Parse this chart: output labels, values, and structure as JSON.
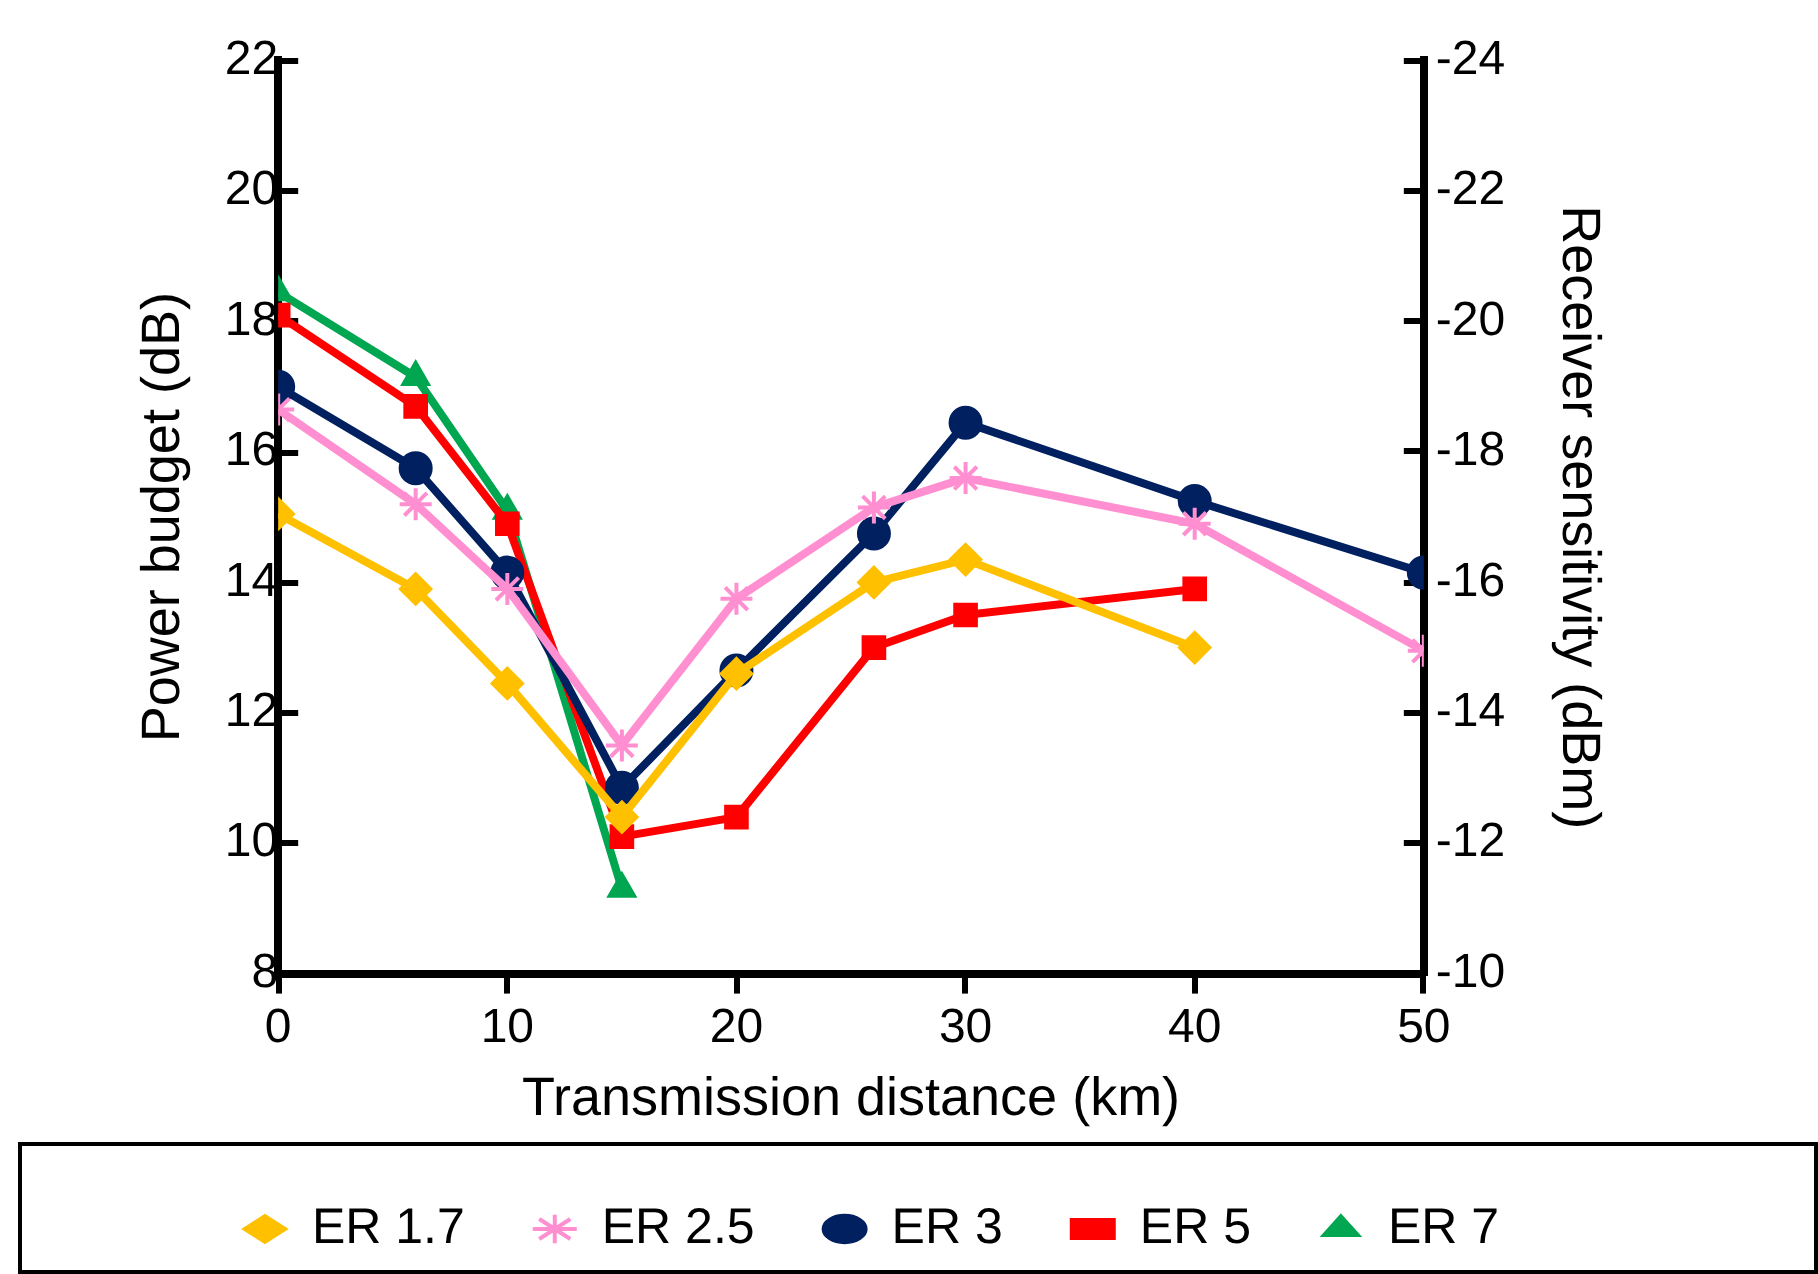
{
  "chart_data": {
    "type": "line",
    "xlabel": "Transmission distance (km)",
    "ylabel": "Power budget (dB)",
    "y2label": "Receiver sensitivity (dBm)",
    "xlim": [
      0,
      50
    ],
    "xticks": [
      0,
      10,
      20,
      30,
      40,
      50
    ],
    "ylim": [
      8,
      22
    ],
    "yticks": [
      8,
      10,
      12,
      14,
      16,
      18,
      20,
      22
    ],
    "y2lim": [
      -10,
      -24
    ],
    "y2ticks": [
      -10,
      -12,
      -14,
      -16,
      -18,
      -20,
      -22,
      -24
    ],
    "grid": false,
    "legend": "bottom",
    "series": [
      {
        "name": "ER 1.7",
        "color": "#ffc000",
        "marker": "diamond",
        "x": [
          0,
          6,
          10,
          15,
          20,
          26,
          30,
          40
        ],
        "values": [
          15.05,
          13.9,
          12.45,
          10.4,
          12.6,
          14.0,
          14.35,
          13.0
        ]
      },
      {
        "name": "ER 2.5",
        "color": "#ff8fd0",
        "marker": "cross",
        "x": [
          0,
          6,
          10,
          15,
          20,
          26,
          30,
          40,
          50
        ],
        "values": [
          16.65,
          15.2,
          13.9,
          11.5,
          13.75,
          15.15,
          15.6,
          14.9,
          12.95
        ]
      },
      {
        "name": "ER 3",
        "color": "#002060",
        "marker": "circle",
        "x": [
          0,
          6,
          10,
          15,
          20,
          26,
          30,
          40,
          50
        ],
        "values": [
          17.0,
          15.75,
          14.15,
          10.85,
          12.65,
          14.75,
          16.45,
          15.25,
          14.15
        ]
      },
      {
        "name": "ER 5",
        "color": "#ff0000",
        "marker": "square",
        "x": [
          0,
          6,
          10,
          15,
          20,
          26,
          30,
          40
        ],
        "values": [
          18.1,
          16.7,
          14.9,
          10.1,
          10.4,
          13.0,
          13.5,
          13.9
        ]
      },
      {
        "name": "ER 7",
        "color": "#00a650",
        "marker": "triangle",
        "x": [
          0,
          6,
          10,
          15
        ],
        "values": [
          18.45,
          17.15,
          15.1,
          9.3
        ]
      }
    ]
  }
}
